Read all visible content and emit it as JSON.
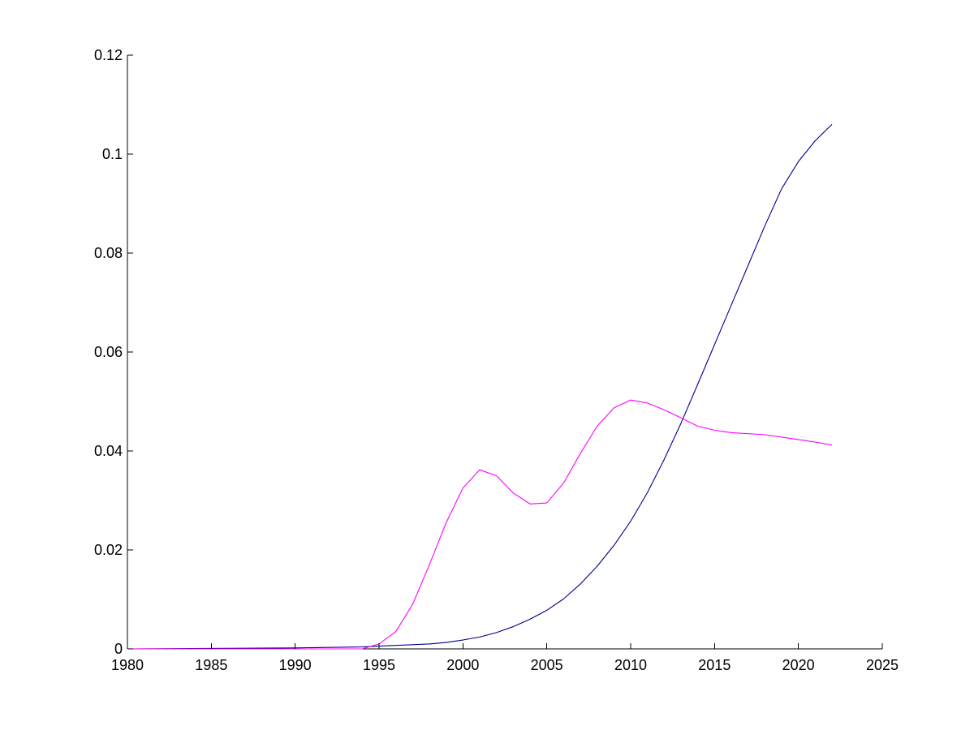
{
  "chart_data": {
    "type": "line",
    "title": "",
    "xlabel": "",
    "ylabel": "",
    "xlim": [
      1980,
      2025
    ],
    "ylim": [
      0,
      0.12
    ],
    "grid": false,
    "legend": "none",
    "x_ticks": [
      1980,
      1985,
      1990,
      1995,
      2000,
      2005,
      2010,
      2015,
      2020,
      2025
    ],
    "x_tick_labels": [
      "1980",
      "1985",
      "1990",
      "1995",
      "2000",
      "2005",
      "2010",
      "2015",
      "2020",
      "2025"
    ],
    "y_ticks": [
      0,
      0.02,
      0.04,
      0.06,
      0.08,
      0.1,
      0.12
    ],
    "y_tick_labels": [
      "0",
      "0.02",
      "0.04",
      "0.06",
      "0.08",
      "0.1",
      "0.12"
    ],
    "series": [
      {
        "color": "#00008b",
        "x": [
          1980,
          1985,
          1990,
          1994,
          1996,
          1998,
          1999,
          2000,
          2001,
          2002,
          2003,
          2004,
          2005,
          2006,
          2007,
          2008,
          2009,
          2010,
          2011,
          2012,
          2013,
          2014,
          2015,
          2016,
          2017,
          2018,
          2019,
          2020,
          2021,
          2022
        ],
        "y": [
          0,
          0.0001,
          0.0002,
          0.0004,
          0.0007,
          0.001,
          0.0013,
          0.0018,
          0.0024,
          0.0033,
          0.0045,
          0.006,
          0.0078,
          0.0101,
          0.0131,
          0.0167,
          0.0209,
          0.0258,
          0.0316,
          0.0383,
          0.0456,
          0.0535,
          0.0615,
          0.0695,
          0.0775,
          0.0855,
          0.093,
          0.0985,
          0.1027,
          0.106
        ]
      },
      {
        "color": "#ff00ff",
        "x": [
          1980,
          1985,
          1990,
          1994,
          1995,
          1996,
          1997,
          1998,
          1999,
          2000,
          2001,
          2002,
          2003,
          2004,
          2005,
          2006,
          2007,
          2008,
          2009,
          2010,
          2011,
          2012,
          2013,
          2014,
          2015,
          2016,
          2017,
          2018,
          2019,
          2020,
          2021,
          2022
        ],
        "y": [
          0,
          0,
          0,
          0,
          0.001,
          0.0035,
          0.009,
          0.017,
          0.0255,
          0.0325,
          0.0362,
          0.035,
          0.0315,
          0.0293,
          0.0295,
          0.0335,
          0.0395,
          0.045,
          0.0487,
          0.0503,
          0.0497,
          0.0483,
          0.0467,
          0.045,
          0.0442,
          0.0437,
          0.0435,
          0.0433,
          0.0428,
          0.0423,
          0.0418,
          0.0412
        ]
      }
    ]
  }
}
